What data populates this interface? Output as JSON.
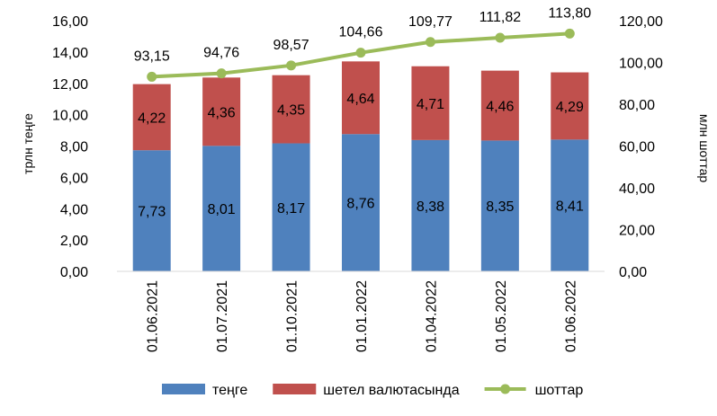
{
  "chart_data": {
    "type": "bar",
    "stacked": true,
    "categories": [
      "01.06.2021",
      "01.07.2021",
      "01.10.2021",
      "01.01.2022",
      "01.04.2022",
      "01.05.2022",
      "01.06.2022"
    ],
    "series": [
      {
        "name": "теңге",
        "axis": "left",
        "type": "bar",
        "color": "#4F81BD",
        "values": [
          7.73,
          8.01,
          8.17,
          8.76,
          8.38,
          8.35,
          8.41
        ],
        "labels": [
          "7,73",
          "8,01",
          "8,17",
          "8,76",
          "8,38",
          "8,35",
          "8,41"
        ]
      },
      {
        "name": "шетел валютасында",
        "axis": "left",
        "type": "bar",
        "color": "#C0504D",
        "values": [
          4.22,
          4.36,
          4.35,
          4.64,
          4.71,
          4.46,
          4.29
        ],
        "labels": [
          "4,22",
          "4,36",
          "4,35",
          "4,64",
          "4,71",
          "4,46",
          "4,29"
        ]
      },
      {
        "name": "шоттар",
        "axis": "right",
        "type": "line",
        "color": "#9BBB59",
        "values": [
          93.15,
          94.76,
          98.57,
          104.66,
          109.77,
          111.82,
          113.8
        ],
        "labels": [
          "93,15",
          "94,76",
          "98,57",
          "104,66",
          "109,77",
          "111,82",
          "113,80"
        ]
      }
    ],
    "ylabel": "трлн теңге",
    "y2label": "млн шоттар",
    "ylim": [
      0,
      16
    ],
    "y2lim": [
      0,
      120
    ],
    "yticks": [
      "0,00",
      "2,00",
      "4,00",
      "6,00",
      "8,00",
      "10,00",
      "12,00",
      "14,00",
      "16,00"
    ],
    "y2ticks": [
      "0,00",
      "20,00",
      "40,00",
      "60,00",
      "80,00",
      "100,00",
      "120,00"
    ],
    "grid": false,
    "legend": "bottom"
  }
}
